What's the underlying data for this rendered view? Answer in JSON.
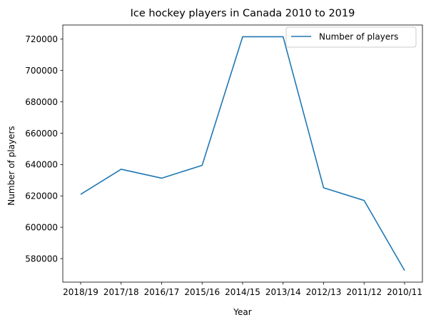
{
  "chart_data": {
    "type": "line",
    "title": "Ice hockey players in Canada 2010 to 2019",
    "xlabel": "Year",
    "ylabel": "Number of players",
    "categories": [
      "2018/19",
      "2017/18",
      "2016/17",
      "2015/16",
      "2014/15",
      "2013/14",
      "2012/13",
      "2011/12",
      "2010/11"
    ],
    "series": [
      {
        "name": "Number of players",
        "color": "#1f77b4",
        "values": [
          621000,
          637000,
          631300,
          639500,
          721500,
          721500,
          625200,
          617100,
          572400
        ]
      }
    ],
    "ylim": [
      565000,
      729000
    ],
    "yticks": [
      580000,
      600000,
      620000,
      640000,
      660000,
      680000,
      700000,
      720000
    ],
    "grid": false,
    "legend_position": "top-right"
  }
}
